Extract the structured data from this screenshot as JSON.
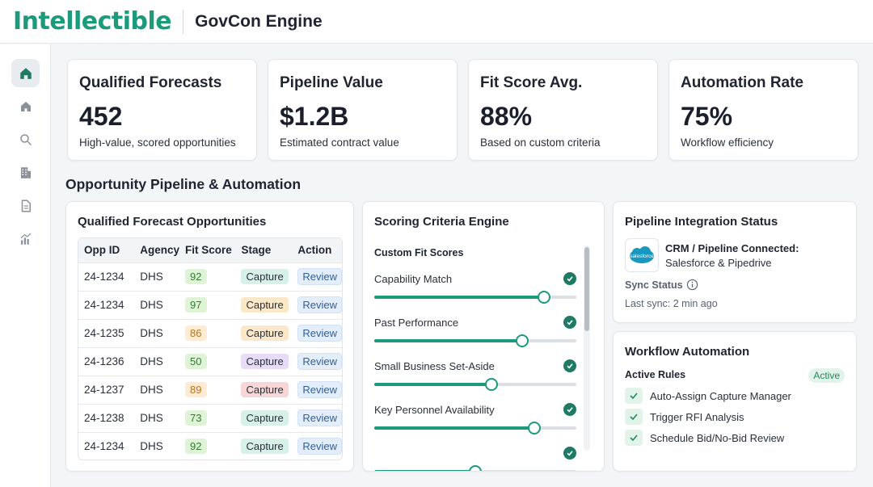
{
  "header": {
    "logo": "Intellectible",
    "title": "GovCon Engine"
  },
  "sidebar": {
    "items": [
      {
        "name": "dashboard",
        "icon": "home-icon",
        "active": true
      },
      {
        "name": "home",
        "icon": "house-icon",
        "active": false
      },
      {
        "name": "search",
        "icon": "search-icon",
        "active": false
      },
      {
        "name": "agencies",
        "icon": "building-icon",
        "active": false
      },
      {
        "name": "documents",
        "icon": "document-icon",
        "active": false
      },
      {
        "name": "analytics",
        "icon": "chart-icon",
        "active": false
      }
    ]
  },
  "stats": [
    {
      "label": "Qualified Forecasts",
      "value": "452",
      "sub": "High-value, scored opportunities"
    },
    {
      "label": "Pipeline Value",
      "value": "$1.2B",
      "sub": "Estimated contract value"
    },
    {
      "label": "Fit Score Avg.",
      "value": "88%",
      "sub": "Based on custom criteria"
    },
    {
      "label": "Automation Rate",
      "value": "75%",
      "sub": "Workflow efficiency"
    }
  ],
  "section_title": "Opportunity Pipeline & Automation",
  "forecast": {
    "title": "Qualified Forecast Opportunities",
    "columns": [
      "Opp ID",
      "Agency",
      "Fit Score",
      "Stage",
      "Action"
    ],
    "rows": [
      {
        "id": "24-1234",
        "agency": "DHS",
        "score": "92",
        "score_color": "#dff3d6",
        "score_text": "#2e7d32",
        "stage": "Capture",
        "stage_color": "#d7f0e8",
        "action": "Review"
      },
      {
        "id": "24-1234",
        "agency": "DHS",
        "score": "97",
        "score_color": "#dff3d6",
        "score_text": "#2e7d32",
        "stage": "Capture",
        "stage_color": "#fbe8c8",
        "action": "Review"
      },
      {
        "id": "24-1235",
        "agency": "DHS",
        "score": "86",
        "score_color": "#fdebd3",
        "score_text": "#b8741a",
        "stage": "Capture",
        "stage_color": "#fbe8c8",
        "action": "Review"
      },
      {
        "id": "24-1236",
        "agency": "DHS",
        "score": "50",
        "score_color": "#dff3d6",
        "score_text": "#2e7d32",
        "stage": "Capture",
        "stage_color": "#e6dcf5",
        "action": "Review"
      },
      {
        "id": "24-1237",
        "agency": "DHS",
        "score": "89",
        "score_color": "#fdebd3",
        "score_text": "#b8741a",
        "stage": "Capture",
        "stage_color": "#f9d6d6",
        "action": "Review"
      },
      {
        "id": "24-1238",
        "agency": "DHS",
        "score": "73",
        "score_color": "#dff3d6",
        "score_text": "#2e7d32",
        "stage": "Capture",
        "stage_color": "#d7f0e8",
        "action": "Review"
      },
      {
        "id": "24-1234",
        "agency": "DHS",
        "score": "92",
        "score_color": "#dff3d6",
        "score_text": "#2e7d32",
        "stage": "Capture",
        "stage_color": "#d7f0e8",
        "action": "Review"
      }
    ]
  },
  "scoring": {
    "title": "Scoring Criteria Engine",
    "subtitle": "Custom Fit Scores",
    "criteria": [
      {
        "label": "Capability Match",
        "value": 0.84
      },
      {
        "label": "Past Performance",
        "value": 0.73
      },
      {
        "label": "Small Business Set-Aside",
        "value": 0.58
      },
      {
        "label": "Key Personnel Availability",
        "value": 0.79
      },
      {
        "label": "",
        "value": 0.5
      }
    ]
  },
  "integration": {
    "title": "Pipeline Integration Status",
    "logo_text": "salesforce",
    "crm_title": "CRM / Pipeline Connected:",
    "crm_sub": "Salesforce & Pipedrive",
    "sync_label": "Sync Status",
    "sync_time": "Last sync: 2 min ago"
  },
  "workflow": {
    "title": "Workflow Automation",
    "rules_label": "Active Rules",
    "badge": "Active",
    "rules": [
      "Auto-Assign Capture Manager",
      "Trigger RFI Analysis",
      "Schedule Bid/No-Bid Review"
    ]
  },
  "colors": {
    "brand": "#1c9a7c",
    "check": "#1f7a63"
  }
}
